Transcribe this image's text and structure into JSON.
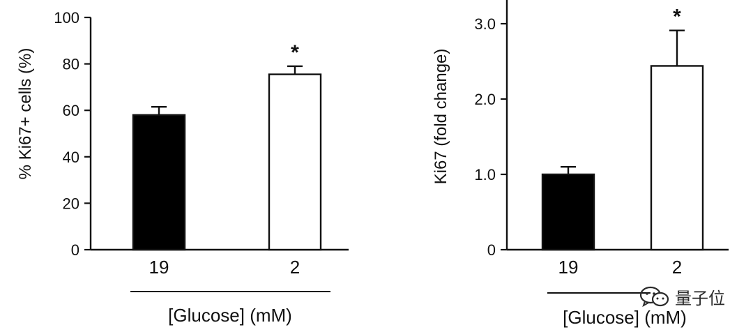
{
  "chart_data": [
    {
      "type": "bar",
      "categories": [
        "19",
        "2"
      ],
      "values": [
        58,
        75.5
      ],
      "errors": [
        3.5,
        3.5
      ],
      "significance": [
        "",
        "*"
      ],
      "bar_fill": [
        "#000000",
        "#ffffff"
      ],
      "title": "",
      "xlabel": "[Glucose] (mM)",
      "ylabel": "% Ki67+ cells (%)",
      "ylim": [
        0,
        100
      ],
      "yticks": [
        0,
        20,
        40,
        60,
        80,
        100
      ],
      "ytick_labels": [
        "0",
        "20",
        "40",
        "60",
        "80",
        "100"
      ]
    },
    {
      "type": "bar",
      "categories": [
        "19",
        "2"
      ],
      "values": [
        1.0,
        2.44
      ],
      "errors": [
        0.1,
        0.47
      ],
      "significance": [
        "",
        "*"
      ],
      "bar_fill": [
        "#000000",
        "#ffffff"
      ],
      "title": "",
      "xlabel": "[Glucose] (mM)",
      "ylabel": "Ki67 (fold change)",
      "ylim": [
        0,
        3.3
      ],
      "yticks": [
        0,
        1,
        2,
        3
      ],
      "ytick_labels": [
        "0",
        "1.0",
        "2.0",
        "3.0"
      ]
    }
  ],
  "watermark": {
    "text": "量子位",
    "icon": "wechat-icon"
  }
}
